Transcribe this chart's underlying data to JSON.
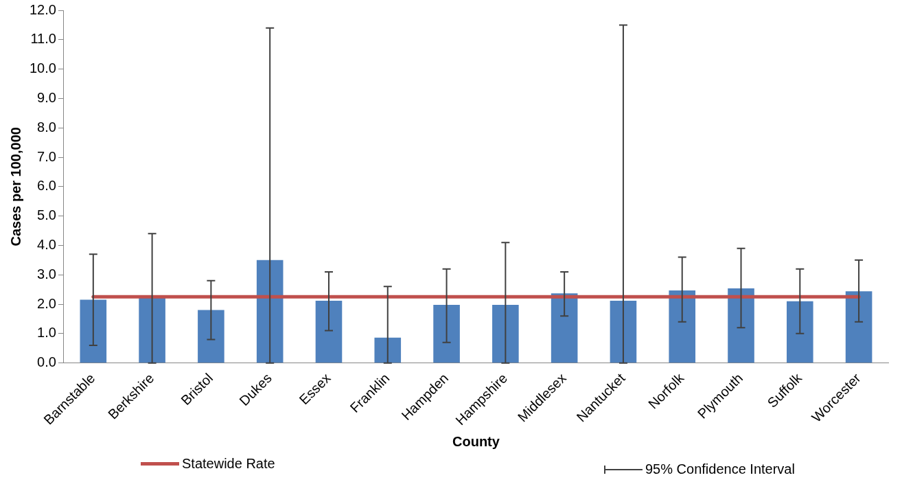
{
  "chart_data": {
    "type": "bar",
    "xlabel": "County",
    "ylabel": "Cases per 100,000",
    "categories": [
      "Barnstable",
      "Berkshire",
      "Bristol",
      "Dukes",
      "Essex",
      "Franklin",
      "Hampden",
      "Hampshire",
      "Middlesex",
      "Nantucket",
      "Norfolk",
      "Plymouth",
      "Suffolk",
      "Worcester"
    ],
    "values": [
      2.15,
      2.25,
      1.8,
      3.5,
      2.12,
      0.86,
      1.98,
      1.98,
      2.37,
      2.12,
      2.47,
      2.54,
      2.1,
      2.44
    ],
    "errors": [
      [
        0.6,
        3.7
      ],
      [
        0,
        4.4
      ],
      [
        0.8,
        2.8
      ],
      [
        0,
        11.4
      ],
      [
        1.1,
        3.1
      ],
      [
        0,
        2.6
      ],
      [
        0.7,
        3.2
      ],
      [
        0,
        4.1
      ],
      [
        1.6,
        3.1
      ],
      [
        0,
        11.5
      ],
      [
        1.4,
        3.6
      ],
      [
        1.2,
        3.9
      ],
      [
        1.0,
        3.2
      ],
      [
        1.4,
        3.5
      ]
    ],
    "color": "#4f81bd",
    "ylim": [
      0,
      12
    ],
    "yticks": [
      {
        "value": 0,
        "label": "0.0"
      },
      {
        "value": 1,
        "label": "1.0"
      },
      {
        "value": 2,
        "label": "2.0"
      },
      {
        "value": 3,
        "label": "3.0"
      },
      {
        "value": 4,
        "label": "4.0"
      },
      {
        "value": 5,
        "label": "5.0"
      },
      {
        "value": 6,
        "label": "6.0"
      },
      {
        "value": 7,
        "label": "7.0"
      },
      {
        "value": 8,
        "label": "8.0"
      },
      {
        "value": 9,
        "label": "9.0"
      },
      {
        "value": 10,
        "label": "10.0"
      },
      {
        "value": 11,
        "label": "11.0"
      },
      {
        "value": 12,
        "label": "12.0"
      }
    ],
    "ref_lines": [
      {
        "axis": "y",
        "value": 2.25,
        "label": "Statewide Rate",
        "color": "#c0504d"
      }
    ],
    "annotations": [
      "95% Confidence Interval"
    ],
    "grid": false,
    "legend": "bottom"
  }
}
